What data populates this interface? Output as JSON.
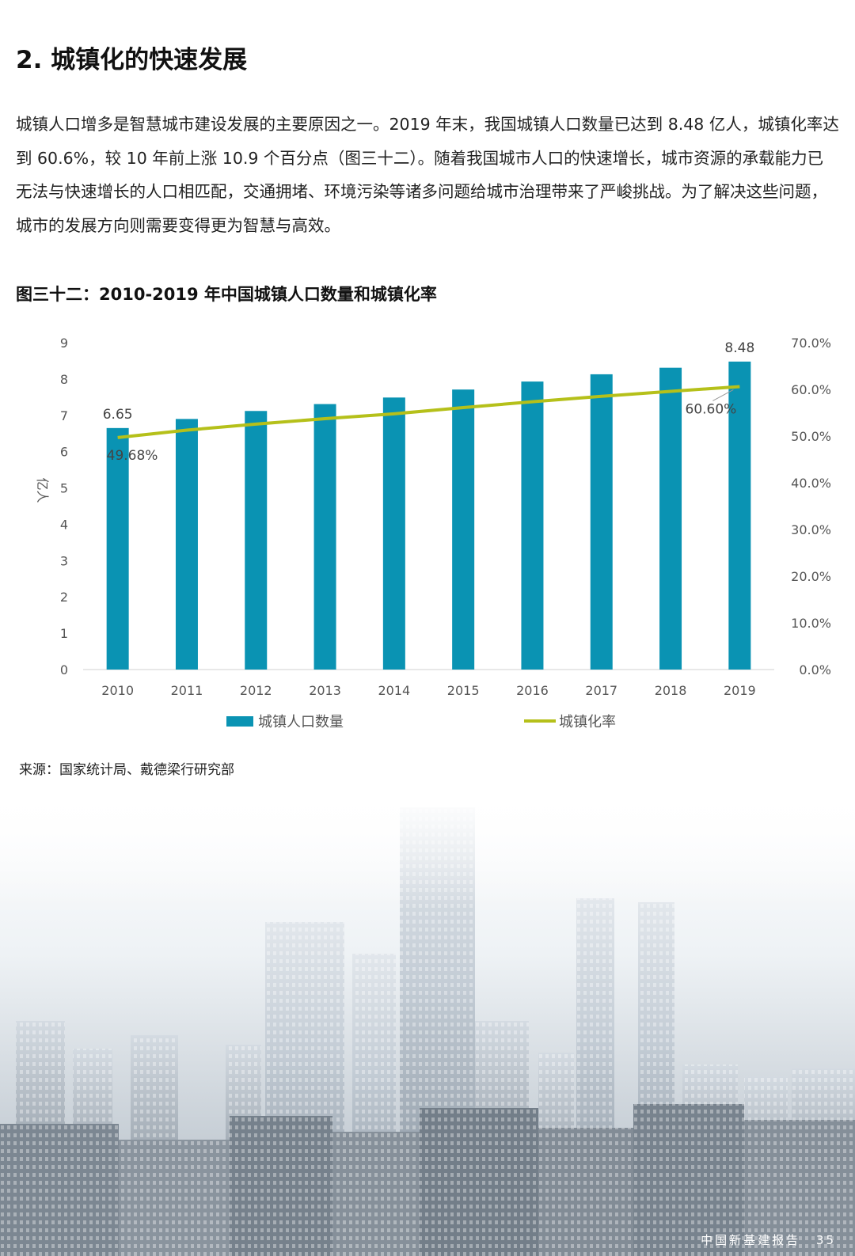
{
  "section": {
    "title": "2. 城镇化的快速发展"
  },
  "paragraph": {
    "text": "城镇人口增多是智慧城市建设发展的主要原因之一。2019 年末，我国城镇人口数量已达到 8.48 亿人，城镇化率达到 60.6%，较 10 年前上涨 10.9 个百分点（图三十二）。随着我国城市人口的快速增长，城市资源的承载能力已无法与快速增长的人口相匹配，交通拥堵、环境污染等诸多问题给城市治理带来了严峻挑战。为了解决这些问题，城市的发展方向则需要变得更为智慧与高效。"
  },
  "figure": {
    "title": "图三十二：2010-2019 年中国城镇人口数量和城镇化率"
  },
  "chart_data": {
    "type": "bar",
    "categories": [
      "2010",
      "2011",
      "2012",
      "2013",
      "2014",
      "2015",
      "2016",
      "2017",
      "2018",
      "2019"
    ],
    "series": [
      {
        "name": "城镇人口数量",
        "type": "bar",
        "axis": "left",
        "color": "#0a93b3",
        "values": [
          6.65,
          6.9,
          7.12,
          7.31,
          7.49,
          7.71,
          7.93,
          8.13,
          8.31,
          8.48
        ]
      },
      {
        "name": "城镇化率",
        "type": "line",
        "axis": "right",
        "color": "#b5c01a",
        "values": [
          49.68,
          51.27,
          52.57,
          53.73,
          54.77,
          56.1,
          57.35,
          58.52,
          59.58,
          60.6
        ]
      }
    ],
    "ylabel": "亿人",
    "y_left": {
      "min": 0,
      "max": 9,
      "ticks": [
        "0",
        "1",
        "2",
        "3",
        "4",
        "5",
        "6",
        "7",
        "8",
        "9"
      ]
    },
    "y_right": {
      "min": 0,
      "max": 70,
      "ticks": [
        "0.0%",
        "10.0%",
        "20.0%",
        "30.0%",
        "40.0%",
        "50.0%",
        "60.0%",
        "70.0%"
      ]
    },
    "data_labels": {
      "bar_first": "6.65",
      "bar_last": "8.48",
      "line_first": "49.68%",
      "line_last": "60.60%"
    },
    "legend_position": "bottom",
    "grid": false
  },
  "source": {
    "text": "来源：国家统计局、戴德梁行研究部"
  },
  "footer": {
    "report": "中国新基建报告",
    "page": "35"
  }
}
